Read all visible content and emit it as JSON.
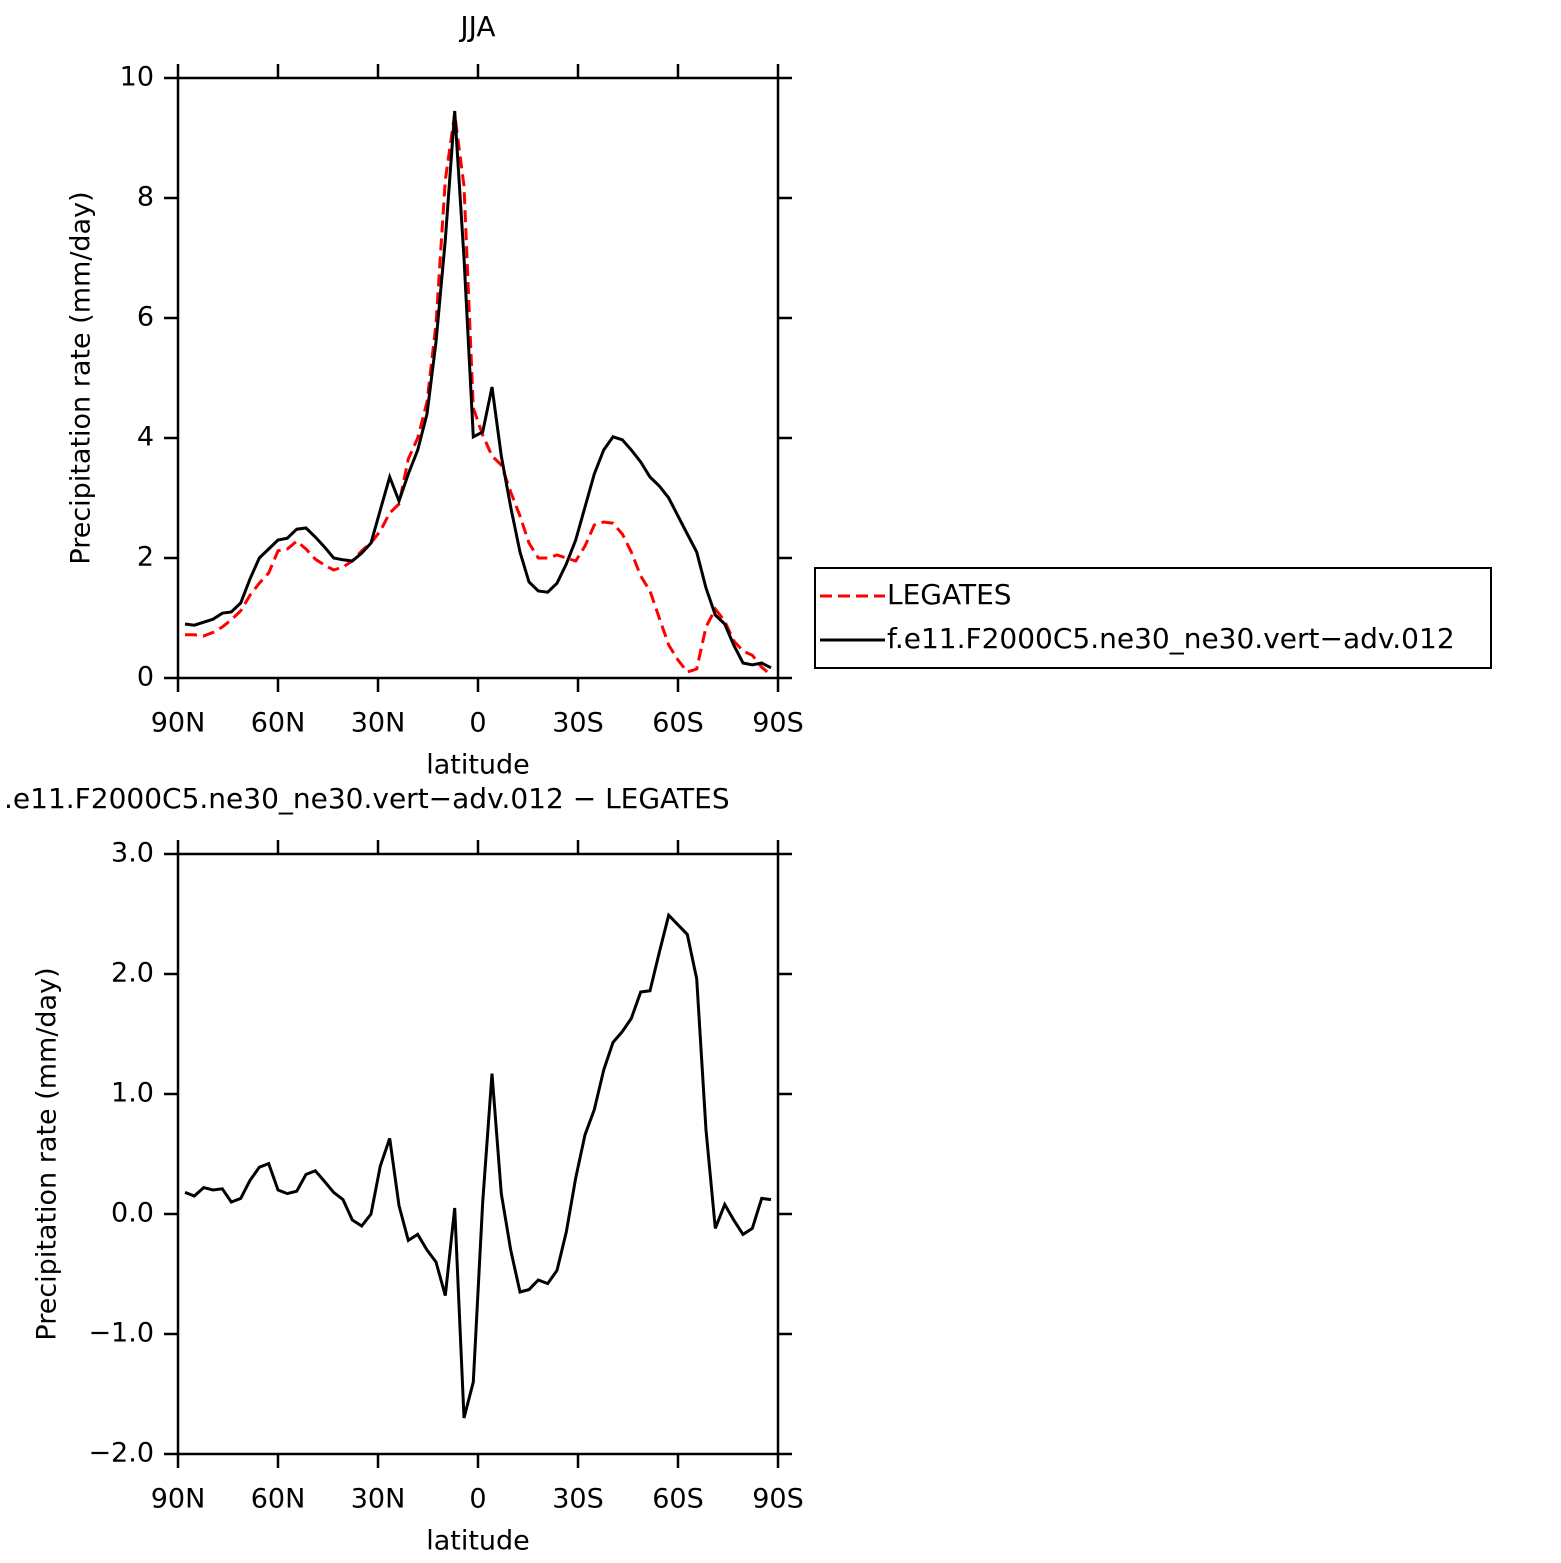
{
  "chart_data": [
    {
      "type": "line",
      "title": "JJA",
      "xlabel": "latitude",
      "ylabel": "Precipitation rate (mm/day)",
      "x": [
        87.9,
        85.1,
        82.3,
        79.5,
        76.7,
        74.0,
        71.2,
        68.4,
        65.6,
        62.8,
        60.0,
        57.2,
        54.4,
        51.6,
        48.8,
        46.0,
        43.3,
        40.5,
        37.7,
        34.9,
        32.1,
        29.3,
        26.5,
        23.7,
        20.9,
        18.1,
        15.3,
        12.6,
        9.8,
        7.0,
        4.2,
        1.4,
        -1.4,
        -4.2,
        -7.0,
        -9.8,
        -12.6,
        -15.3,
        -18.1,
        -20.9,
        -23.7,
        -26.5,
        -29.3,
        -32.1,
        -34.9,
        -37.7,
        -40.5,
        -43.3,
        -46.0,
        -48.8,
        -51.6,
        -54.4,
        -57.2,
        -60.0,
        -62.8,
        -65.6,
        -68.4,
        -71.2,
        -74.0,
        -76.7,
        -79.5,
        -82.3,
        -85.1,
        -87.9
      ],
      "series": [
        {
          "name": "LEGATES",
          "color": "#ff0000",
          "style": "dashed",
          "values": [
            0.72,
            0.72,
            0.7,
            0.76,
            0.85,
            0.97,
            1.12,
            1.38,
            1.58,
            1.75,
            2.12,
            2.15,
            2.28,
            2.15,
            1.98,
            1.88,
            1.8,
            1.85,
            1.95,
            2.12,
            2.25,
            2.45,
            2.75,
            2.9,
            3.65,
            4.0,
            4.6,
            5.9,
            8.3,
            9.4,
            8.2,
            4.5,
            4.05,
            3.7,
            3.55,
            3.1,
            2.7,
            2.25,
            2.0,
            2.0,
            2.05,
            2.0,
            1.95,
            2.2,
            2.55,
            2.6,
            2.58,
            2.4,
            2.1,
            1.7,
            1.45,
            1.0,
            0.55,
            0.3,
            0.1,
            0.15,
            0.85,
            1.15,
            0.95,
            0.62,
            0.45,
            0.38,
            0.18,
            0.05
          ]
        },
        {
          "name": "f.e11.F2000C5.ne30_ne30.vert−adv.012",
          "color": "#000000",
          "style": "solid",
          "values": [
            0.9,
            0.88,
            0.93,
            0.98,
            1.08,
            1.1,
            1.25,
            1.65,
            2.0,
            2.15,
            2.3,
            2.33,
            2.48,
            2.5,
            2.35,
            2.18,
            2.0,
            1.97,
            1.95,
            2.08,
            2.25,
            2.8,
            3.35,
            2.95,
            3.4,
            3.8,
            4.4,
            5.6,
            7.3,
            9.45,
            7.0,
            4.02,
            4.1,
            4.85,
            3.7,
            2.85,
            2.1,
            1.6,
            1.45,
            1.43,
            1.58,
            1.9,
            2.3,
            2.85,
            3.4,
            3.8,
            4.02,
            3.97,
            3.8,
            3.6,
            3.35,
            3.2,
            3.0,
            2.7,
            2.4,
            2.1,
            1.5,
            1.05,
            0.9,
            0.55,
            0.25,
            0.22,
            0.25,
            0.17
          ]
        }
      ],
      "xlim": [
        90,
        -90
      ],
      "xticks": [
        {
          "value": 90,
          "label": "90N"
        },
        {
          "value": 60,
          "label": "60N"
        },
        {
          "value": 30,
          "label": "30N"
        },
        0,
        {
          "value": -30,
          "label": "30S"
        },
        {
          "value": -60,
          "label": "60S"
        },
        {
          "value": -90,
          "label": "90S"
        }
      ],
      "ylim": [
        0,
        10
      ],
      "yticks": [
        0,
        2,
        4,
        6,
        8,
        10
      ],
      "legend": "right"
    },
    {
      "type": "line",
      "title": ".e11.F2000C5.ne30_ne30.vert−adv.012 − LEGATES",
      "xlabel": "latitude",
      "ylabel": "Precipitation rate (mm/day)",
      "x": [
        87.9,
        85.1,
        82.3,
        79.5,
        76.7,
        74.0,
        71.2,
        68.4,
        65.6,
        62.8,
        60.0,
        57.2,
        54.4,
        51.6,
        48.8,
        46.0,
        43.3,
        40.5,
        37.7,
        34.9,
        32.1,
        29.3,
        26.5,
        23.7,
        20.9,
        18.1,
        15.3,
        12.6,
        9.8,
        7.0,
        4.2,
        1.4,
        -1.4,
        -4.2,
        -7.0,
        -9.8,
        -12.6,
        -15.3,
        -18.1,
        -20.9,
        -23.7,
        -26.5,
        -29.3,
        -32.1,
        -34.9,
        -37.7,
        -40.5,
        -43.3,
        -46.0,
        -48.8,
        -51.6,
        -54.4,
        -57.2,
        -60.0,
        -62.8,
        -65.6,
        -68.4,
        -71.2,
        -74.0,
        -76.7,
        -79.5,
        -82.3,
        -85.1,
        -87.9
      ],
      "series": [
        {
          "color": "#000000",
          "style": "solid",
          "values": [
            0.18,
            0.15,
            0.22,
            0.2,
            0.21,
            0.1,
            0.13,
            0.28,
            0.39,
            0.42,
            0.2,
            0.17,
            0.19,
            0.33,
            0.36,
            0.27,
            0.18,
            0.12,
            -0.05,
            -0.1,
            0.0,
            0.4,
            0.63,
            0.07,
            -0.22,
            -0.17,
            -0.3,
            -0.4,
            -0.68,
            0.05,
            -1.7,
            -1.4,
            0.1,
            1.17,
            0.17,
            -0.3,
            -0.65,
            -0.63,
            -0.55,
            -0.58,
            -0.47,
            -0.15,
            0.3,
            0.66,
            0.87,
            1.2,
            1.43,
            1.52,
            1.63,
            1.85,
            1.86,
            2.18,
            2.49,
            2.41,
            2.33,
            1.96,
            0.7,
            -0.12,
            0.08,
            -0.05,
            -0.17,
            -0.12,
            0.13,
            0.12
          ]
        }
      ],
      "xlim": [
        90,
        -90
      ],
      "xticks": [
        {
          "value": 90,
          "label": "90N"
        },
        {
          "value": 60,
          "label": "60N"
        },
        {
          "value": 30,
          "label": "30N"
        },
        0,
        {
          "value": -30,
          "label": "30S"
        },
        {
          "value": -60,
          "label": "60S"
        },
        {
          "value": -90,
          "label": "90S"
        }
      ],
      "ylim": [
        -2,
        3
      ],
      "yticks": [
        {
          "value": -2,
          "label": "−2.0"
        },
        {
          "value": -1,
          "label": "−1.0"
        },
        {
          "value": 0,
          "label": "0.0"
        },
        {
          "value": 1,
          "label": "1.0"
        },
        {
          "value": 2,
          "label": "2.0"
        },
        {
          "value": 3,
          "label": "3.0"
        }
      ]
    }
  ]
}
